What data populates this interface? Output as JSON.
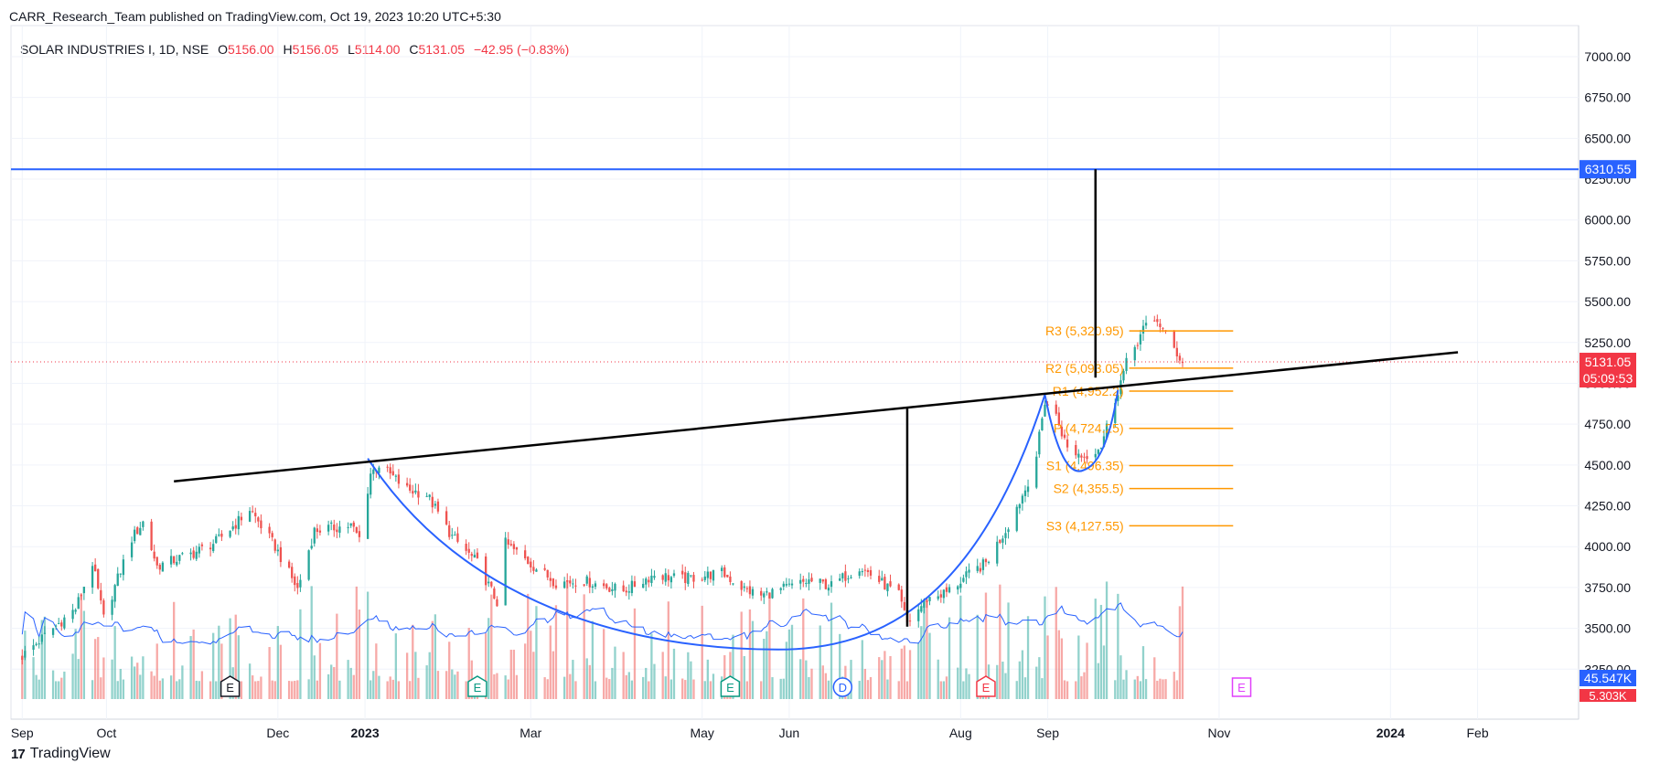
{
  "header": {
    "published": "CARR_Research_Team published on TradingView.com, Oct 19, 2023 10:20 UTC+5:30"
  },
  "legend": {
    "symbol": "SOLAR INDUSTRIES I, 1D, NSE",
    "open_label": "O",
    "open": "5156.00",
    "high_label": "H",
    "high": "5156.05",
    "low_label": "L",
    "low": "5114.00",
    "close_label": "C",
    "close": "5131.05",
    "change": "−42.95 (−0.83%)"
  },
  "footer": {
    "brand": "TradingView",
    "logo_text": "17"
  },
  "colors": {
    "up": "#26a69a",
    "down": "#ef5350",
    "target_line": "#2962ff",
    "cup": "#2962ff",
    "pivot": "#ff9800",
    "price_badge": "#f23645",
    "volume_ma": "#2962ff",
    "trendline": "#000000"
  },
  "chart_data": {
    "type": "candlestick",
    "y_axis_ticks": [
      "7000.00",
      "6750.00",
      "6500.00",
      "6250.00",
      "6000.00",
      "5750.00",
      "5500.00",
      "5250.00",
      "5000.00",
      "4750.00",
      "4500.00",
      "4250.00",
      "4000.00",
      "3750.00",
      "3500.00",
      "3250.00"
    ],
    "x_axis_ticks": [
      "Sep",
      "Oct",
      "Dec",
      "2023",
      "Mar",
      "May",
      "Jun",
      "Aug",
      "Sep",
      "Nov",
      "2024",
      "Feb"
    ],
    "ylim": [
      3050,
      7190
    ],
    "target_price": "6310.55",
    "last_price": "5131.05",
    "countdown": "05:09:53",
    "volume_ma_label": "45.547K",
    "volume_label": "5.303K",
    "pivots": [
      {
        "label": "R3 (5,320.95)",
        "value": 5320.95
      },
      {
        "label": "R2 (5,093.05)",
        "value": 5093.05
      },
      {
        "label": "R1 (4,952.2)",
        "value": 4952.2
      },
      {
        "label": "P (4,724.25)",
        "value": 4724.25
      },
      {
        "label": "S1 (4,496.35)",
        "value": 4496.35
      },
      {
        "label": "S2 (4,355.5)",
        "value": 4355.5
      },
      {
        "label": "S3 (4,127.55)",
        "value": 4127.55
      }
    ],
    "events": [
      {
        "letter": "E",
        "date": "2022-11-14",
        "kind": "earnings-past"
      },
      {
        "letter": "E",
        "date": "2023-02-10",
        "kind": "earnings-beat"
      },
      {
        "letter": "E",
        "date": "2023-05-11",
        "kind": "earnings-beat"
      },
      {
        "letter": "D",
        "date": "2023-06-20",
        "kind": "dividend"
      },
      {
        "letter": "E",
        "date": "2023-08-10",
        "kind": "earnings-miss"
      },
      {
        "letter": "E",
        "date": "2023-11-09",
        "kind": "earnings-upcoming"
      }
    ],
    "neckline": {
      "start": {
        "date": "2022-10-25",
        "price": 4400
      },
      "end": {
        "date": "2024-01-25",
        "price": 5190
      }
    },
    "target_measure": {
      "date": "2023-09-18",
      "from": 5035,
      "to": 6310.55
    },
    "depth_measure": {
      "date": "2023-07-13",
      "from": 3510,
      "to": 4855
    },
    "cup_start": {
      "date": "2023-01-02",
      "price": 4540
    },
    "cup_bottom": {
      "date": "2023-05-28",
      "price": 3370
    },
    "cup_end_left": {
      "date": "2023-07-13",
      "price": 3520
    },
    "cup_top_right": {
      "date": "2023-08-31",
      "price": 4930
    },
    "handle_low": {
      "date": "2023-09-14",
      "price": 4470
    },
    "handle_end": {
      "date": "2023-09-26",
      "price": 4960
    },
    "price_anchors": [
      {
        "date": "2022-09-01",
        "price": 3330
      },
      {
        "date": "2022-09-12",
        "price": 3500
      },
      {
        "date": "2022-09-20",
        "price": 3620
      },
      {
        "date": "2022-09-26",
        "price": 3900
      },
      {
        "date": "2022-09-30",
        "price": 3560
      },
      {
        "date": "2022-10-10",
        "price": 4050
      },
      {
        "date": "2022-10-14",
        "price": 4150
      },
      {
        "date": "2022-10-19",
        "price": 3880
      },
      {
        "date": "2022-11-01",
        "price": 3960
      },
      {
        "date": "2022-11-09",
        "price": 4030
      },
      {
        "date": "2022-11-16",
        "price": 4140
      },
      {
        "date": "2022-11-21",
        "price": 4230
      },
      {
        "date": "2022-11-30",
        "price": 4000
      },
      {
        "date": "2022-12-08",
        "price": 3740
      },
      {
        "date": "2022-12-14",
        "price": 4100
      },
      {
        "date": "2022-12-27",
        "price": 4130
      },
      {
        "date": "2022-12-30",
        "price": 4050
      },
      {
        "date": "2023-01-03",
        "price": 4450
      },
      {
        "date": "2023-01-06",
        "price": 4500
      },
      {
        "date": "2023-01-16",
        "price": 4350
      },
      {
        "date": "2023-01-23",
        "price": 4320
      },
      {
        "date": "2023-02-01",
        "price": 4060
      },
      {
        "date": "2023-02-10",
        "price": 3900
      },
      {
        "date": "2023-02-17",
        "price": 3660
      },
      {
        "date": "2023-02-20",
        "price": 4020
      },
      {
        "date": "2023-03-02",
        "price": 3880
      },
      {
        "date": "2023-03-10",
        "price": 3780
      },
      {
        "date": "2023-03-20",
        "price": 3790
      },
      {
        "date": "2023-04-03",
        "price": 3730
      },
      {
        "date": "2023-04-14",
        "price": 3830
      },
      {
        "date": "2023-04-24",
        "price": 3800
      },
      {
        "date": "2023-05-08",
        "price": 3840
      },
      {
        "date": "2023-05-16",
        "price": 3740
      },
      {
        "date": "2023-05-22",
        "price": 3700
      },
      {
        "date": "2023-06-08",
        "price": 3790
      },
      {
        "date": "2023-06-16",
        "price": 3760
      },
      {
        "date": "2023-06-26",
        "price": 3880
      },
      {
        "date": "2023-07-03",
        "price": 3790
      },
      {
        "date": "2023-07-10",
        "price": 3700
      },
      {
        "date": "2023-07-13",
        "price": 3530
      },
      {
        "date": "2023-07-20",
        "price": 3680
      },
      {
        "date": "2023-07-27",
        "price": 3720
      },
      {
        "date": "2023-08-04",
        "price": 3830
      },
      {
        "date": "2023-08-10",
        "price": 3900
      },
      {
        "date": "2023-08-17",
        "price": 4100
      },
      {
        "date": "2023-08-24",
        "price": 4350
      },
      {
        "date": "2023-08-28",
        "price": 4560
      },
      {
        "date": "2023-08-31",
        "price": 4890
      },
      {
        "date": "2023-09-04",
        "price": 4800
      },
      {
        "date": "2023-09-08",
        "price": 4600
      },
      {
        "date": "2023-09-14",
        "price": 4550
      },
      {
        "date": "2023-09-20",
        "price": 4620
      },
      {
        "date": "2023-09-26",
        "price": 4960
      },
      {
        "date": "2023-09-29",
        "price": 5120
      },
      {
        "date": "2023-10-05",
        "price": 5330
      },
      {
        "date": "2023-10-10",
        "price": 5390
      },
      {
        "date": "2023-10-13",
        "price": 5290
      },
      {
        "date": "2023-10-19",
        "price": 5131
      }
    ]
  }
}
